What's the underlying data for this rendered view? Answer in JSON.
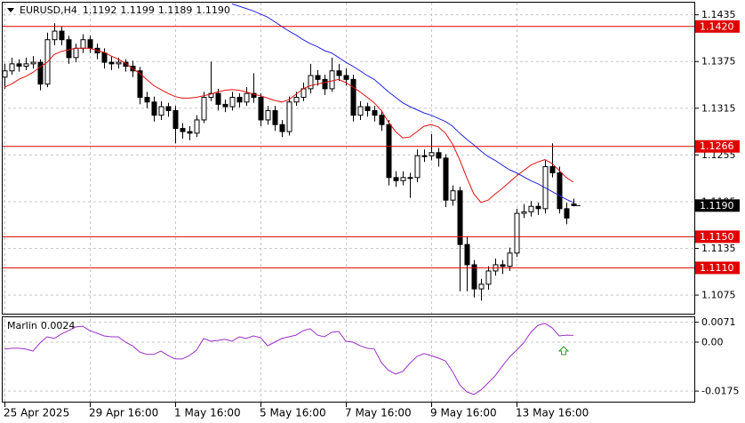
{
  "chart_data": [
    {
      "type": "candlestick",
      "title": "EURUSD,H4",
      "title_values": [
        "1.1192",
        "1.1199",
        "1.1189",
        "1.1190"
      ],
      "categories": [
        "25 Apr 2025",
        null,
        null,
        null,
        null,
        null,
        null,
        null,
        null,
        null,
        null,
        null,
        "29 Apr 16:00",
        null,
        null,
        null,
        null,
        null,
        null,
        null,
        null,
        null,
        null,
        null,
        "1 May 16:00",
        null,
        null,
        null,
        null,
        null,
        null,
        null,
        null,
        null,
        null,
        null,
        "5 May 16:00",
        null,
        null,
        null,
        null,
        null,
        null,
        null,
        null,
        null,
        null,
        null,
        "7 May 16:00",
        null,
        null,
        null,
        null,
        null,
        null,
        null,
        null,
        null,
        null,
        null,
        "9 May 16:00",
        null,
        null,
        null,
        null,
        null,
        null,
        null,
        null,
        null,
        null,
        null,
        "13 May 16:00",
        null,
        null,
        null,
        null,
        null,
        null,
        null,
        null
      ],
      "candles": [
        [
          1.1355,
          1.1372,
          1.134,
          1.1363
        ],
        [
          1.1363,
          1.138,
          1.1358,
          1.1372
        ],
        [
          1.1372,
          1.1378,
          1.1362,
          1.1369
        ],
        [
          1.1369,
          1.138,
          1.1364,
          1.1372
        ],
        [
          1.1372,
          1.1382,
          1.1366,
          1.1374
        ],
        [
          1.1374,
          1.1378,
          1.1338,
          1.1346
        ],
        [
          1.1346,
          1.1412,
          1.1342,
          1.1403
        ],
        [
          1.1403,
          1.1424,
          1.1396,
          1.1414
        ],
        [
          1.1414,
          1.142,
          1.1396,
          1.1403
        ],
        [
          1.1403,
          1.1408,
          1.1372,
          1.138
        ],
        [
          1.138,
          1.1398,
          1.1374,
          1.1392
        ],
        [
          1.1392,
          1.141,
          1.1386,
          1.1403
        ],
        [
          1.1403,
          1.1408,
          1.1386,
          1.1392
        ],
        [
          1.1392,
          1.1398,
          1.1378,
          1.1386
        ],
        [
          1.1386,
          1.1392,
          1.1366,
          1.1374
        ],
        [
          1.1374,
          1.1382,
          1.1364,
          1.1372
        ],
        [
          1.1372,
          1.138,
          1.1366,
          1.1374
        ],
        [
          1.1374,
          1.1378,
          1.1362,
          1.1369
        ],
        [
          1.1369,
          1.1376,
          1.1355,
          1.1363
        ],
        [
          1.1363,
          1.1368,
          1.132,
          1.1329
        ],
        [
          1.1329,
          1.1336,
          1.1315,
          1.1323
        ],
        [
          1.1323,
          1.133,
          1.1298,
          1.1306
        ],
        [
          1.1306,
          1.1324,
          1.13,
          1.1317
        ],
        [
          1.1317,
          1.1322,
          1.1304,
          1.1312
        ],
        [
          1.1312,
          1.1318,
          1.127,
          1.1289
        ],
        [
          1.1289,
          1.1296,
          1.1276,
          1.1285
        ],
        [
          1.1285,
          1.1292,
          1.1274,
          1.1283
        ],
        [
          1.1283,
          1.1306,
          1.1278,
          1.13
        ],
        [
          1.13,
          1.1336,
          1.1296,
          1.1329
        ],
        [
          1.1329,
          1.1375,
          1.1324,
          1.1334
        ],
        [
          1.1334,
          1.134,
          1.1312,
          1.132
        ],
        [
          1.132,
          1.1326,
          1.131,
          1.1317
        ],
        [
          1.1317,
          1.1336,
          1.1312,
          1.1329
        ],
        [
          1.1329,
          1.1334,
          1.1316,
          1.1323
        ],
        [
          1.1323,
          1.1342,
          1.1318,
          1.1334
        ],
        [
          1.1334,
          1.136,
          1.1322,
          1.1329
        ],
        [
          1.1329,
          1.1334,
          1.1292,
          1.13
        ],
        [
          1.13,
          1.1318,
          1.1294,
          1.1312
        ],
        [
          1.1312,
          1.1318,
          1.1286,
          1.1294
        ],
        [
          1.1294,
          1.13,
          1.1278,
          1.1285
        ],
        [
          1.1285,
          1.133,
          1.128,
          1.1323
        ],
        [
          1.1323,
          1.1336,
          1.1318,
          1.1329
        ],
        [
          1.1329,
          1.1348,
          1.1324,
          1.134
        ],
        [
          1.134,
          1.1372,
          1.1334,
          1.1357
        ],
        [
          1.1357,
          1.1364,
          1.1344,
          1.1352
        ],
        [
          1.1352,
          1.1358,
          1.1332,
          1.134
        ],
        [
          1.134,
          1.138,
          1.1336,
          1.1363
        ],
        [
          1.1363,
          1.1372,
          1.135,
          1.1357
        ],
        [
          1.1357,
          1.1366,
          1.1344,
          1.1352
        ],
        [
          1.1352,
          1.1358,
          1.1298,
          1.1306
        ],
        [
          1.1306,
          1.1324,
          1.13,
          1.1317
        ],
        [
          1.1317,
          1.1322,
          1.1304,
          1.1312
        ],
        [
          1.1312,
          1.1318,
          1.1298,
          1.1306
        ],
        [
          1.1306,
          1.1312,
          1.1286,
          1.1294
        ],
        [
          1.1294,
          1.13,
          1.1216,
          1.1226
        ],
        [
          1.1226,
          1.1234,
          1.1214,
          1.1222
        ],
        [
          1.1222,
          1.1234,
          1.1216,
          1.1226
        ],
        [
          1.1226,
          1.1232,
          1.12,
          1.1226
        ],
        [
          1.1226,
          1.1262,
          1.122,
          1.1254
        ],
        [
          1.1254,
          1.1262,
          1.1246,
          1.1254
        ],
        [
          1.1254,
          1.1282,
          1.1248,
          1.1258
        ],
        [
          1.1258,
          1.1264,
          1.124,
          1.1251
        ],
        [
          1.1251,
          1.1256,
          1.1188,
          1.1197
        ],
        [
          1.1197,
          1.1216,
          1.119,
          1.1209
        ],
        [
          1.1209,
          1.1214,
          1.108,
          1.114
        ],
        [
          1.114,
          1.115,
          1.108,
          1.1114
        ],
        [
          1.1114,
          1.112,
          1.1072,
          1.1083
        ],
        [
          1.1083,
          1.1096,
          1.1068,
          1.1089
        ],
        [
          1.1089,
          1.1112,
          1.1082,
          1.1106
        ],
        [
          1.1106,
          1.1122,
          1.11,
          1.1114
        ],
        [
          1.1114,
          1.112,
          1.1102,
          1.1112
        ],
        [
          1.1112,
          1.1136,
          1.1106,
          1.1129
        ],
        [
          1.1129,
          1.1186,
          1.1124,
          1.118
        ],
        [
          1.118,
          1.1192,
          1.1174,
          1.1182
        ],
        [
          1.1182,
          1.1196,
          1.1176,
          1.1189
        ],
        [
          1.1189,
          1.1194,
          1.1178,
          1.1186
        ],
        [
          1.1186,
          1.1248,
          1.118,
          1.124
        ],
        [
          1.124,
          1.127,
          1.1226,
          1.1232
        ],
        [
          1.1232,
          1.124,
          1.118,
          1.1186
        ],
        [
          1.1186,
          1.1194,
          1.1166,
          1.1174
        ],
        [
          1.1192,
          1.1199,
          1.1189,
          1.119
        ]
      ],
      "up_color": "#ffffff",
      "down_color": "#000000",
      "series": [
        {
          "color": "#e01010",
          "values": [
            1.1342,
            1.1346,
            1.1352,
            1.1356,
            1.1361,
            1.1368,
            1.1374,
            1.1384,
            1.1388,
            1.139,
            1.1392,
            1.1392,
            1.1392,
            1.1389,
            1.1387,
            1.1382,
            1.1378,
            1.1373,
            1.1366,
            1.136,
            1.1352,
            1.1344,
            1.1339,
            1.1334,
            1.133,
            1.1328,
            1.1328,
            1.1329,
            1.1331,
            1.1333,
            1.1336,
            1.1338,
            1.1339,
            1.1338,
            1.1336,
            1.1333,
            1.1331,
            1.1328,
            1.1325,
            1.1323,
            1.1326,
            1.1333,
            1.134,
            1.1344,
            1.1346,
            1.1348,
            1.135,
            1.1352,
            1.1348,
            1.1342,
            1.1336,
            1.1329,
            1.1322,
            1.1312,
            1.1297,
            1.1285,
            1.1277,
            1.1278,
            1.1285,
            1.1292,
            1.1294,
            1.1291,
            1.1283,
            1.1269,
            1.1249,
            1.1226,
            1.1205,
            1.1194,
            1.1197,
            1.1205,
            1.1212,
            1.122,
            1.1228,
            1.1235,
            1.1242,
            1.1246,
            1.1249,
            1.1244,
            1.1235,
            1.1226,
            1.122
          ]
        },
        {
          "color": "#2424e0",
          "values": [
            null,
            null,
            null,
            null,
            null,
            null,
            null,
            null,
            null,
            null,
            null,
            null,
            null,
            null,
            null,
            null,
            null,
            null,
            null,
            null,
            null,
            null,
            null,
            null,
            null,
            null,
            null,
            null,
            null,
            null,
            null,
            null,
            1.1449,
            1.1446,
            1.1443,
            1.144,
            1.1436,
            1.1432,
            1.1426,
            1.142,
            1.1414,
            1.1409,
            1.1403,
            1.1398,
            1.1394,
            1.1389,
            1.1386,
            1.138,
            1.1374,
            1.1369,
            1.1363,
            1.1357,
            1.1352,
            1.1344,
            1.1336,
            1.1329,
            1.1322,
            1.1317,
            1.1313,
            1.1309,
            1.1306,
            1.1302,
            1.1298,
            1.1292,
            1.1283,
            1.1275,
            1.1268,
            1.126,
            1.1253,
            1.1248,
            1.1242,
            1.1236,
            1.1232,
            1.1227,
            1.1222,
            1.1218,
            1.1213,
            1.1208,
            1.1203,
            1.1198,
            1.1194
          ]
        }
      ],
      "levels": [
        {
          "value": 1.142,
          "label": "1.1420"
        },
        1.1266,
        {
          "value": 1.115,
          "label": "1.1150"
        },
        {
          "value": 1.111,
          "label": "1.1110"
        }
      ],
      "level_color": "#e00000",
      "ylim": [
        1.105,
        1.1454
      ],
      "yticks": [
        1.1435,
        1.1375,
        1.1315,
        1.1255,
        1.1195,
        1.1135,
        1.1075
      ],
      "grid": true
    },
    {
      "type": "line",
      "title": "Marlin",
      "series": [
        {
          "color": "#9b30c8",
          "values": [
            -0.0025,
            -0.0022,
            -0.0022,
            -0.0025,
            -0.0032,
            -0.0003,
            0.0019,
            0.0013,
            0.0029,
            0.0041,
            0.0054,
            0.0057,
            0.0041,
            0.0032,
            0.0022,
            0.0019,
            0.0019,
            0,
            -0.0013,
            -0.0035,
            -0.0044,
            -0.0044,
            -0.0032,
            -0.0048,
            -0.006,
            -0.006,
            -0.0048,
            -0.0029,
            0.0013,
            0.0003,
            0.0006,
            0.001,
            0.0003,
            0.0019,
            0.0013,
            0.0022,
            0.0016,
            -0.0013,
            0,
            0.0013,
            0.0019,
            0.0025,
            0.0041,
            0.0048,
            0.0025,
            0.0019,
            0.0035,
            0.0038,
            0.0003,
            0,
            -0.0013,
            -0.0022,
            -0.0025,
            -0.0073,
            -0.0101,
            -0.0114,
            -0.0105,
            -0.0076,
            -0.0051,
            -0.0041,
            -0.0048,
            -0.0057,
            -0.0067,
            -0.0105,
            -0.0152,
            -0.0178,
            -0.0187,
            -0.0171,
            -0.0146,
            -0.012,
            -0.0086,
            -0.0054,
            -0.0029,
            -0.0003,
            0.0035,
            0.006,
            0.0067,
            0.0051,
            0.0022,
            0.0025,
            0.0024
          ]
        }
      ],
      "ylim": [
        -0.0216,
        0.0092
      ],
      "yticks": [
        0.0071,
        {
          "value": 0,
          "label": "0.00"
        },
        -0.0175
      ],
      "grid": true
    }
  ]
}
